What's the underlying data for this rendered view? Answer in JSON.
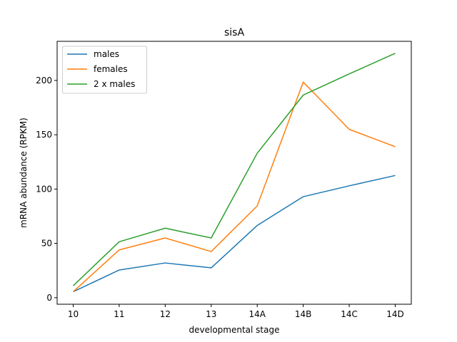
{
  "chart_data": {
    "type": "line",
    "title": "sisA",
    "xlabel": "developmental stage",
    "ylabel": "mRNA abundance (RPKM)",
    "categories": [
      "10",
      "11",
      "12",
      "13",
      "14A",
      "14B",
      "14C",
      "14D"
    ],
    "ylim": [
      -6,
      236
    ],
    "yticks": [
      0,
      50,
      100,
      150,
      200
    ],
    "grid": false,
    "legend_position": "top-left",
    "series": [
      {
        "name": "males",
        "color": "#1f77b4",
        "values": [
          5.5,
          25.5,
          32,
          27.5,
          66.5,
          93,
          103,
          112.5
        ]
      },
      {
        "name": "females",
        "color": "#ff7f0e",
        "values": [
          5.5,
          44,
          55,
          42.5,
          84.5,
          198.5,
          155,
          139
        ]
      },
      {
        "name": "2 x males",
        "color": "#2ca02c",
        "values": [
          11,
          51.5,
          64,
          55,
          133,
          186.5,
          206,
          225
        ]
      }
    ]
  }
}
